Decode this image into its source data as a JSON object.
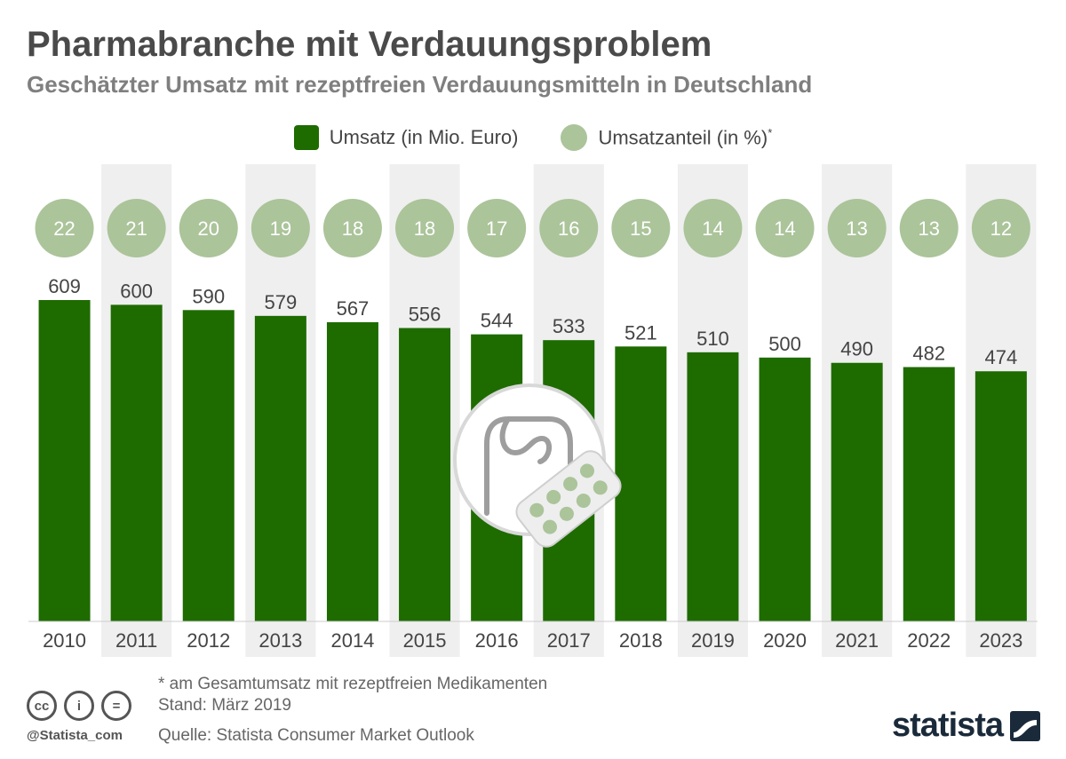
{
  "header": {
    "title": "Pharmabranche mit Verdauungsproblem",
    "subtitle": "Geschätzter Umsatz mit rezeptfreien Verdauungsmitteln in Deutschland"
  },
  "legend": {
    "bar_label": "Umsatz (in Mio. Euro)",
    "circle_label": "Umsatzanteil (in %)",
    "circle_mark": "*"
  },
  "colors": {
    "bar": "#1e6b00",
    "circle": "#abc49a",
    "band": "#efefef",
    "text": "#444444"
  },
  "chart_data": {
    "type": "bar",
    "title": "Pharmabranche mit Verdauungsproblem",
    "subtitle": "Geschätzter Umsatz mit rezeptfreien Verdauungsmitteln in Deutschland",
    "categories": [
      "2010",
      "2011",
      "2012",
      "2013",
      "2014",
      "2015",
      "2016",
      "2017",
      "2018",
      "2019",
      "2020",
      "2021",
      "2022",
      "2023"
    ],
    "series": [
      {
        "name": "Umsatz (in Mio. Euro)",
        "values": [
          609,
          600,
          590,
          579,
          567,
          556,
          544,
          533,
          521,
          510,
          500,
          490,
          482,
          474
        ]
      },
      {
        "name": "Umsatzanteil (in %)",
        "values": [
          22,
          21,
          20,
          19,
          18,
          18,
          17,
          16,
          15,
          14,
          14,
          13,
          13,
          12
        ]
      }
    ],
    "ylim": [
      0,
      609
    ],
    "grid": false,
    "legend_position": "top-center"
  },
  "footer": {
    "footnote": "* am Gesamtumsatz mit rezeptfreien Medikamenten",
    "stand": "Stand: März 2019",
    "source": "Quelle: Statista Consumer Market Outlook",
    "handle": "@Statista_com",
    "brand": "statista",
    "license_icons": [
      "cc-icon",
      "by-person-icon",
      "nd-equals-icon"
    ],
    "license_glyphs": [
      "cc",
      "i",
      "="
    ]
  }
}
